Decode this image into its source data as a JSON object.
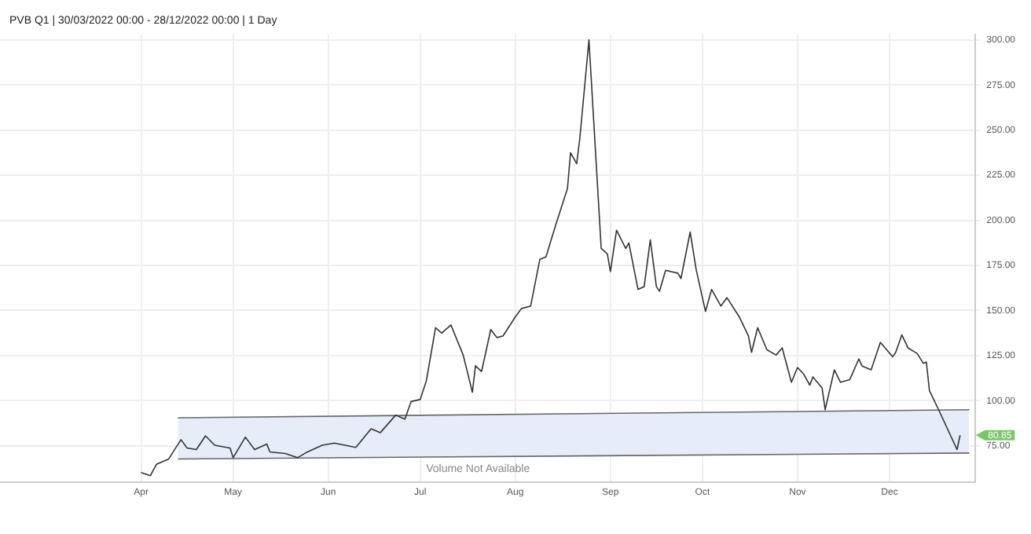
{
  "chart_data": {
    "type": "line",
    "title": "PVB Q1 | 30/03/2022 00:00 - 28/12/2022 00:00 | 1 Day",
    "xlim": [
      "2022-02-14",
      "2022-12-29"
    ],
    "xticks": [
      {
        "value": "2022-04-01",
        "label": "Apr"
      },
      {
        "value": "2022-05-01",
        "label": "May"
      },
      {
        "value": "2022-06-01",
        "label": "Jun"
      },
      {
        "value": "2022-07-01",
        "label": "Jul"
      },
      {
        "value": "2022-08-01",
        "label": "Aug"
      },
      {
        "value": "2022-09-01",
        "label": "Sep"
      },
      {
        "value": "2022-10-01",
        "label": "Oct"
      },
      {
        "value": "2022-11-01",
        "label": "Nov"
      },
      {
        "value": "2022-12-01",
        "label": "Dec"
      }
    ],
    "ylim": [
      55,
      303
    ],
    "yticks": [
      {
        "value": 75,
        "label": "75.00"
      },
      {
        "value": 100,
        "label": "100.00"
      },
      {
        "value": 125,
        "label": "125.00"
      },
      {
        "value": 150,
        "label": "150.00"
      },
      {
        "value": 175,
        "label": "175.00"
      },
      {
        "value": 200,
        "label": "200.00"
      },
      {
        "value": 225,
        "label": "225.00"
      },
      {
        "value": 250,
        "label": "250.00"
      },
      {
        "value": 275,
        "label": "275.00"
      },
      {
        "value": 300,
        "label": "300.00"
      }
    ],
    "grid": true,
    "legend": false,
    "marker": "none",
    "line_style": "solid",
    "series": [
      {
        "type": "line",
        "color": "#666666",
        "x": [
          "2022-04-13",
          "2022-12-27"
        ],
        "values": [
          90.5,
          95
        ]
      },
      {
        "type": "line",
        "color": "#666666",
        "x": [
          "2022-04-13",
          "2022-12-27"
        ],
        "values": [
          67.7,
          71
        ],
        "lower": [
          67.7,
          71
        ],
        "upper": [
          90.5,
          95
        ]
      },
      {
        "color": "#333333",
        "x": [
          "2022-04-01",
          "2022-04-04",
          "2022-04-06",
          "2022-04-10",
          "2022-04-14",
          "2022-04-16",
          "2022-04-19",
          "2022-04-22",
          "2022-04-25",
          "2022-04-30",
          "2022-05-01",
          "2022-05-05",
          "2022-05-08",
          "2022-05-12",
          "2022-05-13",
          "2022-05-18",
          "2022-05-22",
          "2022-05-25",
          "2022-05-30",
          "2022-06-03",
          "2022-06-10",
          "2022-06-15",
          "2022-06-18",
          "2022-06-23",
          "2022-06-26",
          "2022-06-28",
          "2022-07-01",
          "2022-07-03",
          "2022-07-06",
          "2022-07-08",
          "2022-07-11",
          "2022-07-15",
          "2022-07-18",
          "2022-07-19",
          "2022-07-21",
          "2022-07-24",
          "2022-07-26",
          "2022-07-28",
          "2022-08-01",
          "2022-08-03",
          "2022-08-06",
          "2022-08-09",
          "2022-08-11",
          "2022-08-14",
          "2022-08-18",
          "2022-08-19",
          "2022-08-21",
          "2022-08-22",
          "2022-08-25",
          "2022-08-29",
          "2022-08-31",
          "2022-09-01",
          "2022-09-03",
          "2022-09-06",
          "2022-09-07",
          "2022-09-10",
          "2022-09-12",
          "2022-09-14",
          "2022-09-16",
          "2022-09-17",
          "2022-09-19",
          "2022-09-23",
          "2022-09-24",
          "2022-09-27",
          "2022-09-29",
          "2022-10-02",
          "2022-10-04",
          "2022-10-07",
          "2022-10-09",
          "2022-10-13",
          "2022-10-16",
          "2022-10-17",
          "2022-10-19",
          "2022-10-22",
          "2022-10-25",
          "2022-10-27",
          "2022-10-30",
          "2022-11-01",
          "2022-11-03",
          "2022-11-05",
          "2022-11-06",
          "2022-11-09",
          "2022-11-10",
          "2022-11-13",
          "2022-11-15",
          "2022-11-18",
          "2022-11-21",
          "2022-11-22",
          "2022-11-25",
          "2022-11-28",
          "2022-12-02",
          "2022-12-03",
          "2022-12-05",
          "2022-12-07",
          "2022-12-10",
          "2022-12-12",
          "2022-12-13",
          "2022-12-14",
          "2022-12-17",
          "2022-12-23",
          "2022-12-24"
        ],
        "values": [
          60.2,
          58.4,
          64.7,
          67.7,
          78.4,
          73.8,
          72.9,
          80.5,
          75.3,
          73.8,
          68.4,
          79.8,
          72.9,
          75.9,
          71.6,
          70.7,
          68.4,
          71.4,
          75.3,
          76.5,
          74.1,
          84.4,
          82.3,
          92,
          89.8,
          99.5,
          100.7,
          111.1,
          140.5,
          137.5,
          142,
          125.3,
          104.7,
          119.3,
          116.2,
          139.5,
          135,
          135.9,
          146.5,
          151.1,
          152.5,
          178.4,
          179.8,
          196.5,
          217.7,
          237.5,
          231.4,
          245,
          300,
          184.4,
          181.4,
          171.6,
          194.5,
          184.4,
          187.5,
          161.7,
          163.2,
          189.2,
          163.2,
          160.7,
          172.3,
          170.7,
          167.7,
          193.5,
          172.3,
          149.5,
          161.7,
          152.5,
          157.1,
          146.5,
          135.9,
          126.8,
          140.5,
          128.3,
          125.3,
          129.3,
          110.2,
          118.4,
          114.7,
          108.6,
          113.2,
          107.1,
          95,
          117.1,
          110.2,
          111.6,
          123.2,
          119.3,
          117.1,
          132.3,
          124.4,
          126.8,
          136.5,
          129.3,
          126.2,
          120.7,
          121.4,
          105.6,
          95,
          72.9,
          80.85
        ]
      }
    ],
    "annotations": [
      "Volume Not Available",
      {
        "text": "80.85",
        "x": "2022-12-24",
        "y": 80.85
      }
    ]
  }
}
